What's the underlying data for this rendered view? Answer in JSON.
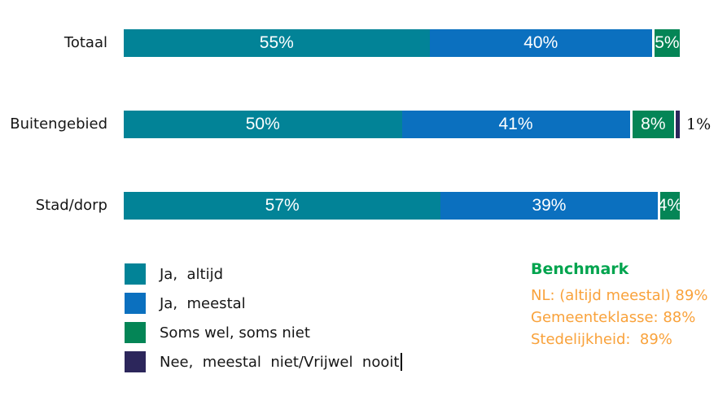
{
  "page": {
    "background": "#ffffff"
  },
  "chart_data": {
    "type": "bar",
    "orientation": "horizontal",
    "stacked": true,
    "grid": false,
    "xlim": [
      0,
      100
    ],
    "legend_position": "bottom-left",
    "categories": [
      "Totaal",
      "Buitengebied",
      "Stad/dorp"
    ],
    "series": [
      {
        "name": "Ja,  altijd",
        "color": "#028397",
        "values": [
          55,
          50,
          57
        ]
      },
      {
        "name": "Ja,  meestal",
        "color": "#0B70BF",
        "values": [
          40,
          41,
          39
        ]
      },
      {
        "name": "Soms wel, soms niet",
        "color": "#048556",
        "values": [
          5,
          8,
          4
        ]
      },
      {
        "name": "Nee,  meestal  niet/Vrijwel  nooit",
        "color": "#2C265B",
        "values": [
          0,
          1,
          0
        ]
      }
    ],
    "data_labels": {
      "inside": [
        [
          "55%",
          "40%",
          "5%"
        ],
        [
          "50%",
          "41%",
          "8%"
        ],
        [
          "57%",
          "39%",
          "4%"
        ]
      ],
      "outside": [
        null,
        "1%",
        null
      ]
    }
  },
  "legend": {
    "items": [
      {
        "label": "Ja,  altijd",
        "color": "#028397"
      },
      {
        "label": "Ja,  meestal",
        "color": "#0B70BF"
      },
      {
        "label": "Soms wel, soms niet",
        "color": "#048556"
      },
      {
        "label": "Nee,  meestal  niet/Vrijwel  nooit",
        "color": "#2C265B"
      }
    ],
    "has_text_cursor_after_last": true
  },
  "benchmark": {
    "title": "Benchmark",
    "title_color": "#00A44E",
    "line_color": "#F9A23B",
    "lines": [
      "NL: (altijd meestal) 89%",
      "Gemeenteklasse: 88%",
      "Stedelijkheid:  89%"
    ]
  },
  "colors": {
    "bar_label_text": "#ffffff",
    "category_text": "#161616",
    "outside_label_text": "#111111"
  }
}
